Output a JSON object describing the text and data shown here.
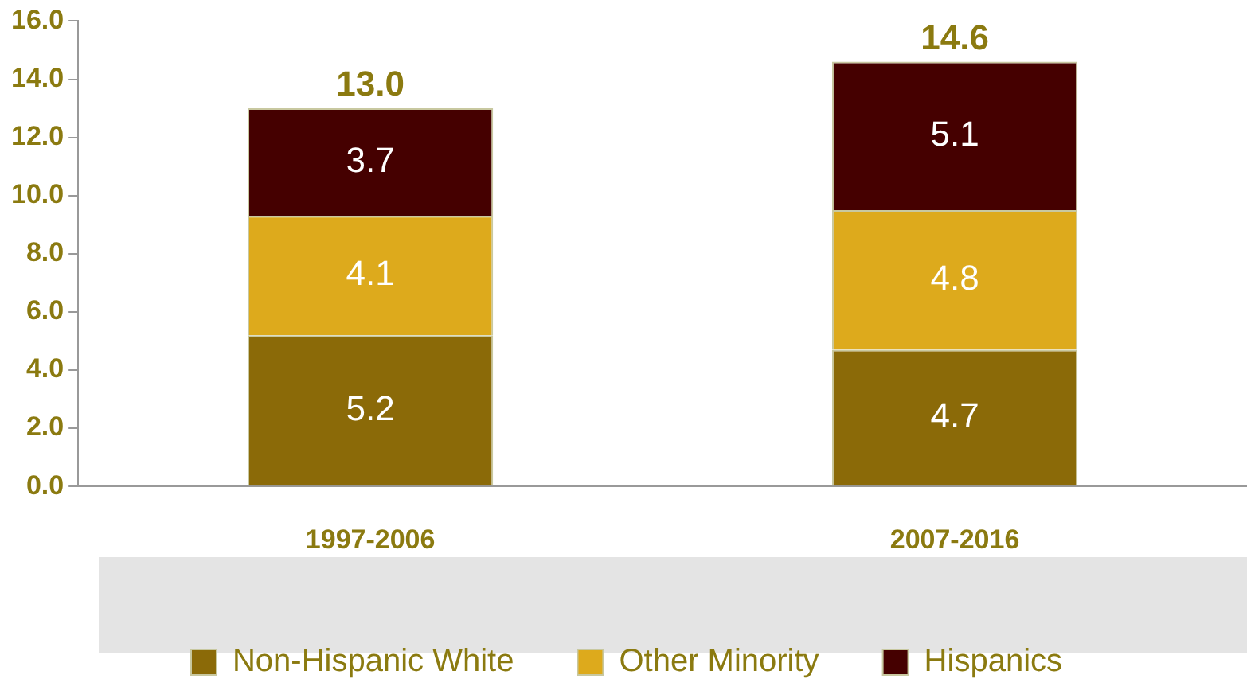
{
  "chart_data": {
    "type": "bar",
    "stacked": true,
    "categories": [
      "1997-2006",
      "2007-2016"
    ],
    "series": [
      {
        "name": "Non-Hispanic White",
        "color": "#8b6a08",
        "values": [
          5.2,
          4.7
        ]
      },
      {
        "name": "Other Minority",
        "color": "#ddaa1c",
        "values": [
          4.1,
          4.8
        ]
      },
      {
        "name": "Hispanics",
        "color": "#450000",
        "values": [
          3.7,
          5.1
        ]
      }
    ],
    "ylim": [
      0,
      16
    ],
    "yticks": [
      {
        "value": 0,
        "label": "0.0"
      },
      {
        "value": 2,
        "label": "2.0"
      },
      {
        "value": 4,
        "label": "4.0"
      },
      {
        "value": 6,
        "label": "6.0"
      },
      {
        "value": 8,
        "label": "8.0"
      },
      {
        "value": 10,
        "label": "10.0"
      },
      {
        "value": 12,
        "label": "12.0"
      },
      {
        "value": 14,
        "label": "14.0"
      },
      {
        "value": 16,
        "label": "16.0"
      }
    ],
    "data_labels": true,
    "totals": [
      "13.0",
      "14.6"
    ],
    "grid": false,
    "legend": "bottom"
  }
}
